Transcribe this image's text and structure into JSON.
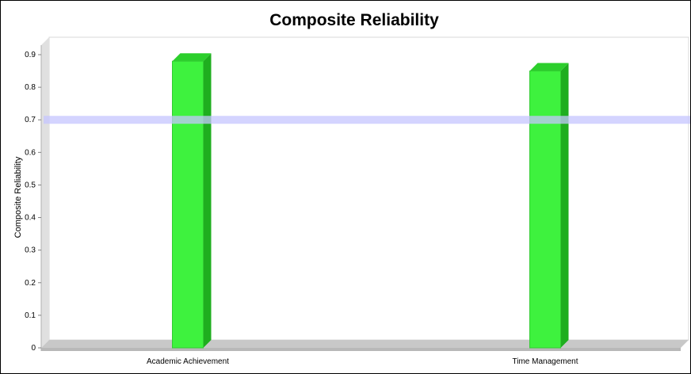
{
  "chart_data": {
    "type": "bar",
    "title": "Composite Reliability",
    "xlabel": "",
    "ylabel": "Composite Reliability",
    "categories": [
      "Academic Achievement",
      "Time Management"
    ],
    "values": [
      0.88,
      0.85
    ],
    "ylim": [
      0,
      0.9
    ],
    "yticks": [
      "0",
      "0.1",
      "0.2",
      "0.3",
      "0.4",
      "0.5",
      "0.6",
      "0.7",
      "0.8",
      "0.9"
    ],
    "reference_line": 0.7,
    "grid": false,
    "legend": "none",
    "colors": {
      "bar": "#3ef23e",
      "bar_top": "#2ccf2c",
      "bar_side": "#1fae1f",
      "reference_line": "#c6c6ff",
      "floor": "#c8c8c8",
      "wall": "#e0e0e0"
    }
  }
}
